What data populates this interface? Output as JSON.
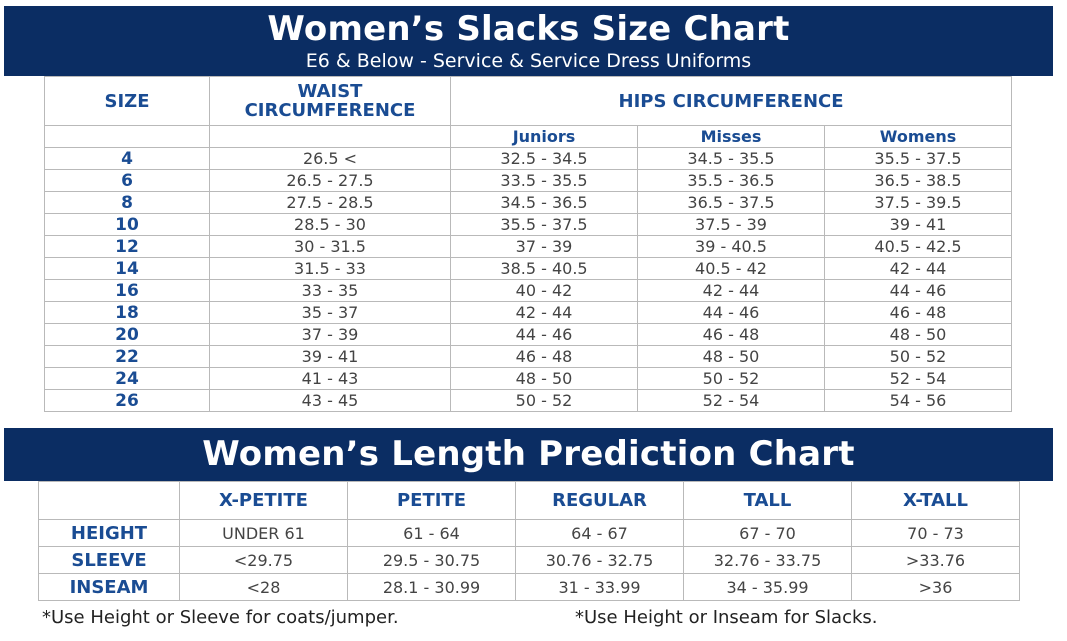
{
  "size_chart": {
    "title": "Women’s Slacks Size Chart",
    "subtitle": "E6 & Below - Service & Service Dress Uniforms",
    "headers": {
      "size": "SIZE",
      "waist_line1": "WAIST",
      "waist_line2": "CIRCUMFERENCE",
      "hips": "HIPS CIRCUMFERENCE",
      "juniors": "Juniors",
      "misses": "Misses",
      "womens": "Womens"
    },
    "rows": [
      [
        "4",
        "26.5 <",
        "32.5 - 34.5",
        "34.5 - 35.5",
        "35.5 - 37.5"
      ],
      [
        "6",
        "26.5 - 27.5",
        "33.5 - 35.5",
        "35.5 - 36.5",
        "36.5 - 38.5"
      ],
      [
        "8",
        "27.5 - 28.5",
        "34.5 - 36.5",
        "36.5 - 37.5",
        "37.5 - 39.5"
      ],
      [
        "10",
        "28.5 - 30",
        "35.5 - 37.5",
        "37.5 - 39",
        "39 - 41"
      ],
      [
        "12",
        "30 - 31.5",
        "37 - 39",
        "39 - 40.5",
        "40.5 - 42.5"
      ],
      [
        "14",
        "31.5 - 33",
        "38.5 - 40.5",
        "40.5 - 42",
        "42 - 44"
      ],
      [
        "16",
        "33 - 35",
        "40 - 42",
        "42 - 44",
        "44 - 46"
      ],
      [
        "18",
        "35 - 37",
        "42 - 44",
        "44 - 46",
        "46 - 48"
      ],
      [
        "20",
        "37 - 39",
        "44 - 46",
        "46 - 48",
        "48 - 50"
      ],
      [
        "22",
        "39 - 41",
        "46 - 48",
        "48 - 50",
        "50 - 52"
      ],
      [
        "24",
        "41 - 43",
        "48 - 50",
        "50 - 52",
        "52 - 54"
      ],
      [
        "26",
        "43 - 45",
        "50 - 52",
        "52 - 54",
        "54 - 56"
      ]
    ]
  },
  "length_chart": {
    "title": "Women’s Length Prediction Chart",
    "columns": [
      "X-PETITE",
      "PETITE",
      "REGULAR",
      "TALL",
      "X-TALL"
    ],
    "rows": [
      {
        "label": "HEIGHT",
        "values": [
          "UNDER 61",
          "61 - 64",
          "64 - 67",
          "67 - 70",
          "70 - 73"
        ]
      },
      {
        "label": "SLEEVE",
        "values": [
          "<29.75",
          "29.5 - 30.75",
          "30.76 - 32.75",
          "32.76 - 33.75",
          ">33.76"
        ]
      },
      {
        "label": "INSEAM",
        "values": [
          "<28",
          "28.1 - 30.99",
          "31 - 33.99",
          "34 - 35.99",
          ">36"
        ]
      }
    ]
  },
  "notes": {
    "coats": "*Use Height or Sleeve for coats/jumper.",
    "slacks": "*Use Height or Inseam for Slacks."
  },
  "colors": {
    "banner": "#0b2d63",
    "header_text": "#1a4c93",
    "value_text": "#444444",
    "grid": "#b9b9b9"
  }
}
